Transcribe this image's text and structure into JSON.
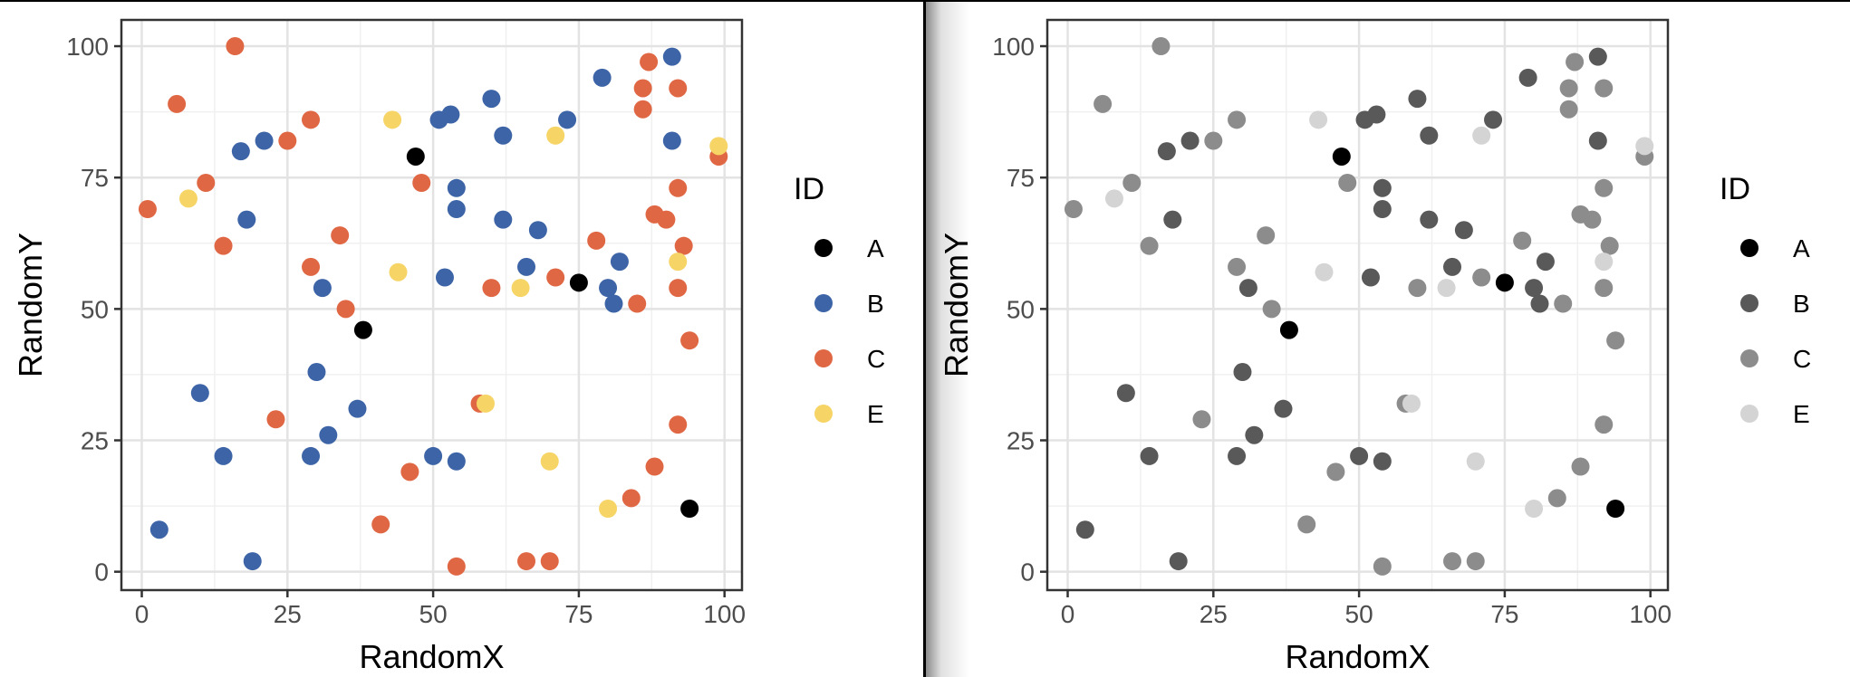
{
  "chart_data": [
    {
      "type": "scatter",
      "variant": "color",
      "xlabel": "RandomX",
      "ylabel": "RandomY",
      "xlim": [
        -3.5,
        103
      ],
      "ylim": [
        -3.5,
        105
      ],
      "xticks": [
        0,
        25,
        50,
        75,
        100
      ],
      "yticks": [
        0,
        25,
        50,
        75,
        100
      ],
      "grid": true,
      "legend": {
        "title": "ID",
        "placement": "right"
      },
      "series": [
        {
          "name": "A",
          "color": "#000000",
          "x": [
            47,
            38,
            75,
            94
          ],
          "y": [
            79,
            46,
            55,
            12
          ]
        },
        {
          "name": "B",
          "color": "#3c64a6",
          "x": [
            91,
            79,
            60,
            51,
            53,
            73,
            17,
            21,
            62,
            91,
            54,
            54,
            18,
            62,
            68,
            66,
            31,
            52,
            82,
            80,
            81,
            30,
            37,
            10,
            14,
            32,
            29,
            50,
            54,
            3,
            19
          ],
          "y": [
            98,
            94,
            90,
            86,
            87,
            86,
            80,
            82,
            83,
            82,
            73,
            69,
            67,
            67,
            65,
            58,
            54,
            56,
            59,
            54,
            51,
            38,
            31,
            34,
            22,
            26,
            22,
            22,
            21,
            8,
            2
          ]
        },
        {
          "name": "C",
          "color": "#e06744",
          "x": [
            16,
            87,
            6,
            86,
            92,
            86,
            29,
            25,
            99,
            11,
            48,
            92,
            1,
            88,
            90,
            14,
            34,
            29,
            78,
            93,
            71,
            60,
            92,
            85,
            35,
            94,
            58,
            23,
            92,
            88,
            46,
            84,
            41,
            66,
            70,
            54
          ],
          "y": [
            100,
            97,
            89,
            92,
            92,
            88,
            86,
            82,
            79,
            74,
            74,
            73,
            69,
            68,
            67,
            62,
            64,
            58,
            63,
            62,
            56,
            54,
            54,
            51,
            50,
            44,
            32,
            29,
            28,
            20,
            19,
            14,
            9,
            2,
            2,
            1
          ]
        },
        {
          "name": "E",
          "color": "#f6d465",
          "x": [
            43,
            71,
            99,
            8,
            92,
            44,
            65,
            59,
            70,
            80
          ],
          "y": [
            86,
            83,
            81,
            71,
            59,
            57,
            54,
            32,
            21,
            12
          ]
        }
      ]
    },
    {
      "type": "scatter",
      "variant": "grayscale",
      "xlabel": "RandomX",
      "ylabel": "RandomY",
      "xlim": [
        -3.5,
        103
      ],
      "ylim": [
        -3.5,
        105
      ],
      "xticks": [
        0,
        25,
        50,
        75,
        100
      ],
      "yticks": [
        0,
        25,
        50,
        75,
        100
      ],
      "grid": true,
      "legend": {
        "title": "ID",
        "placement": "right"
      },
      "series": [
        {
          "name": "A",
          "color": "#000000",
          "x": [
            47,
            38,
            75,
            94
          ],
          "y": [
            79,
            46,
            55,
            12
          ]
        },
        {
          "name": "B",
          "color": "#595959",
          "x": [
            91,
            79,
            60,
            51,
            53,
            73,
            17,
            21,
            62,
            91,
            54,
            54,
            18,
            62,
            68,
            66,
            31,
            52,
            82,
            80,
            81,
            30,
            37,
            10,
            14,
            32,
            29,
            50,
            54,
            3,
            19
          ],
          "y": [
            98,
            94,
            90,
            86,
            87,
            86,
            80,
            82,
            83,
            82,
            73,
            69,
            67,
            67,
            65,
            58,
            54,
            56,
            59,
            54,
            51,
            38,
            31,
            34,
            22,
            26,
            22,
            22,
            21,
            8,
            2
          ]
        },
        {
          "name": "C",
          "color": "#8c8c8c",
          "x": [
            16,
            87,
            6,
            86,
            92,
            86,
            29,
            25,
            99,
            11,
            48,
            92,
            1,
            88,
            90,
            14,
            34,
            29,
            78,
            93,
            71,
            60,
            92,
            85,
            35,
            94,
            58,
            23,
            92,
            88,
            46,
            84,
            41,
            66,
            70,
            54
          ],
          "y": [
            100,
            97,
            89,
            92,
            92,
            88,
            86,
            82,
            79,
            74,
            74,
            73,
            69,
            68,
            67,
            62,
            64,
            58,
            63,
            62,
            56,
            54,
            54,
            51,
            50,
            44,
            32,
            29,
            28,
            20,
            19,
            14,
            9,
            2,
            2,
            1
          ]
        },
        {
          "name": "E",
          "color": "#d4d4d4",
          "x": [
            43,
            71,
            99,
            8,
            92,
            44,
            65,
            59,
            70,
            80
          ],
          "y": [
            86,
            83,
            81,
            71,
            59,
            57,
            54,
            32,
            21,
            12
          ]
        }
      ]
    }
  ]
}
